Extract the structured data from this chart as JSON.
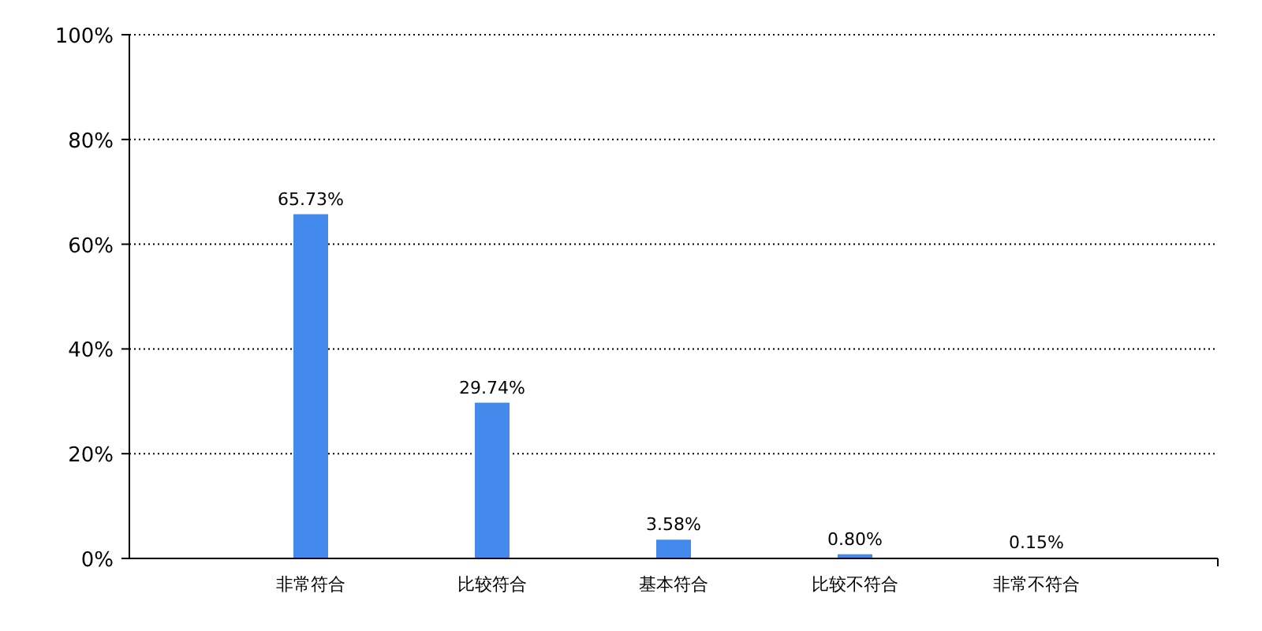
{
  "chart_data": {
    "type": "bar",
    "categories": [
      "非常符合",
      "比较符合",
      "基本符合",
      "比较不符合",
      "非常不符合"
    ],
    "values": [
      65.73,
      29.74,
      3.58,
      0.8,
      0.15
    ],
    "value_labels": [
      "65.73%",
      "29.74%",
      "3.58%",
      "0.80%",
      "0.15%"
    ],
    "color": "#448aec",
    "ylim": [
      0,
      100
    ],
    "yticks": [
      {
        "value": 0,
        "label": "0%"
      },
      {
        "value": 20,
        "label": "20%"
      },
      {
        "value": 40,
        "label": "40%"
      },
      {
        "value": 60,
        "label": "60%"
      },
      {
        "value": 80,
        "label": "80%"
      },
      {
        "value": 100,
        "label": "100%"
      }
    ],
    "grid": "y"
  }
}
